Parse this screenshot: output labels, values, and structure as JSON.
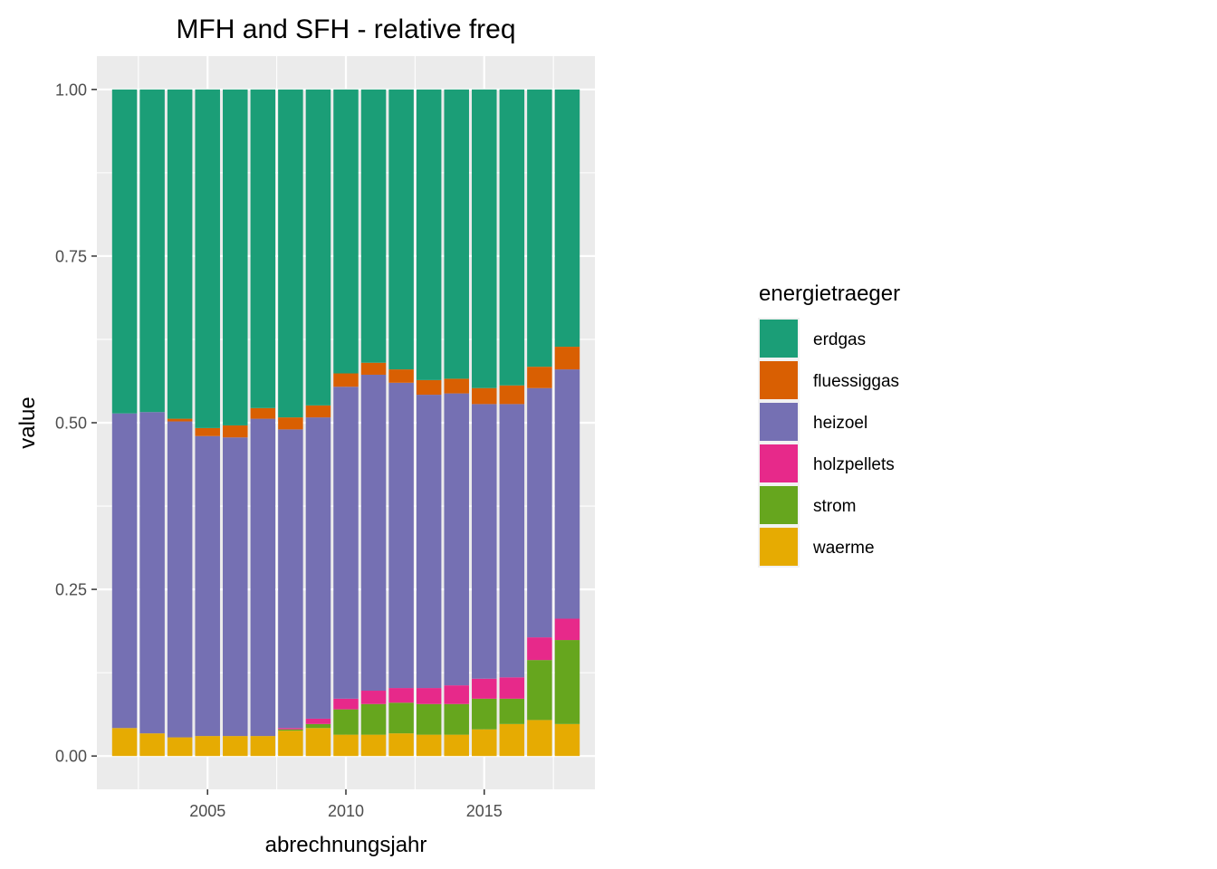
{
  "chart_data": {
    "type": "bar",
    "stacked": true,
    "title": "MFH and SFH - relative freq",
    "xlabel": "abrechnungsjahr",
    "ylabel": "value",
    "x": [
      2002,
      2003,
      2004,
      2005,
      2006,
      2007,
      2008,
      2009,
      2010,
      2011,
      2012,
      2013,
      2014,
      2015,
      2016,
      2017,
      2018
    ],
    "xlim": [
      2001.0,
      2019.0
    ],
    "ylim": [
      -0.05,
      1.05
    ],
    "x_ticks": [
      2005,
      2010,
      2015
    ],
    "x_tick_labels": [
      "2005",
      "2010",
      "2015"
    ],
    "y_ticks": [
      0.0,
      0.25,
      0.5,
      0.75,
      1.0
    ],
    "y_tick_labels": [
      "0.00",
      "0.25",
      "0.50",
      "0.75",
      "1.00"
    ],
    "grid": true,
    "legend_position": "right",
    "legend_title": "energietraeger",
    "series": [
      {
        "name": "waerme",
        "color": "#e6ab02",
        "values": [
          0.042,
          0.034,
          0.028,
          0.03,
          0.03,
          0.03,
          0.038,
          0.042,
          0.032,
          0.032,
          0.034,
          0.032,
          0.032,
          0.04,
          0.048,
          0.054,
          0.048
        ]
      },
      {
        "name": "strom",
        "color": "#66a61e",
        "values": [
          0.0,
          0.0,
          0.0,
          0.0,
          0.0,
          0.0,
          0.002,
          0.006,
          0.038,
          0.046,
          0.046,
          0.046,
          0.046,
          0.046,
          0.038,
          0.09,
          0.126
        ]
      },
      {
        "name": "holzpellets",
        "color": "#e7298a",
        "values": [
          0.0,
          0.0,
          0.0,
          0.0,
          0.0,
          0.0,
          0.002,
          0.008,
          0.016,
          0.02,
          0.022,
          0.024,
          0.028,
          0.03,
          0.032,
          0.034,
          0.032
        ]
      },
      {
        "name": "heizoel",
        "color": "#7570b3",
        "values": [
          0.472,
          0.482,
          0.474,
          0.45,
          0.448,
          0.476,
          0.448,
          0.452,
          0.468,
          0.474,
          0.458,
          0.44,
          0.438,
          0.412,
          0.41,
          0.374,
          0.374
        ]
      },
      {
        "name": "fluessiggas",
        "color": "#d95f02",
        "values": [
          0.0,
          0.0,
          0.004,
          0.012,
          0.018,
          0.016,
          0.018,
          0.018,
          0.02,
          0.018,
          0.02,
          0.022,
          0.022,
          0.024,
          0.028,
          0.032,
          0.034
        ]
      },
      {
        "name": "erdgas",
        "color": "#1b9e77",
        "values": [
          0.486,
          0.484,
          0.494,
          0.508,
          0.504,
          0.478,
          0.492,
          0.474,
          0.426,
          0.41,
          0.42,
          0.436,
          0.434,
          0.448,
          0.444,
          0.416,
          0.386
        ]
      }
    ]
  }
}
